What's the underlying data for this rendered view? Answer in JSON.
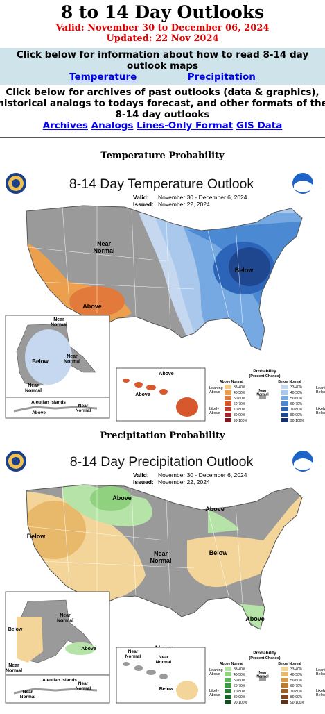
{
  "header": {
    "title": "8 to 14 Day Outlooks",
    "valid": "Valid: November 30 to December 06, 2024",
    "updated": "Updated: 22 Nov 2024"
  },
  "info": {
    "text": "Click below for information about how to read 8-14 day outlook maps",
    "link_temperature": "Temperature",
    "link_precipitation": "Precipitation"
  },
  "archives": {
    "line1": "Click below for archives of past outlooks (data & graphics),",
    "line2": "historical analogs to todays forecast, and other formats of the",
    "line3": "8-14 day outlooks",
    "links": [
      "Archives",
      "Analogs",
      "Lines-Only Format",
      "GIS Data"
    ]
  },
  "temperature": {
    "section_title": "Temperature Probability",
    "map_title": "8-14 Day Temperature Outlook",
    "valid_label": "Valid:",
    "valid_value": "November 30 - December 6, 2024",
    "issued_label": "Issued:",
    "issued_value": "November 22, 2024",
    "labels": {
      "near_normal": "Near\nNormal",
      "above": "Above",
      "below": "Below",
      "ak_near_normal_1": "Near\nNormal",
      "ak_below": "Below",
      "ak_near_normal_2": "Near\nNormal",
      "ak_near_normal_3": "Near\nNormal",
      "aleutian": "Aleutian Islands",
      "al_above": "Above",
      "al_near_normal": "Near\nNormal",
      "hi_above_1": "Above",
      "hi_above_2": "Above"
    },
    "legend": {
      "title": "Probability",
      "subtitle": "(Percent Chance)",
      "above_header": "Above Normal",
      "below_header": "Below Normal",
      "near_normal": "Near\nNormal",
      "leaning_above": "Leaning\nAbove",
      "likely_above": "Likely\nAbove",
      "leaning_below": "Leaning\nBelow",
      "likely_below": "Likely\nBelow",
      "ranges": [
        "33-40%",
        "40-50%",
        "50-60%",
        "60-70%",
        "70-80%",
        "80-90%",
        "90-100%"
      ],
      "above_colors": [
        "#f5c98c",
        "#eca04e",
        "#e27a3b",
        "#d6582c",
        "#c0392b",
        "#a1262a",
        "#7a1c22"
      ],
      "below_colors": [
        "#c6d8ef",
        "#a9c8ec",
        "#76a8e2",
        "#4b89d2",
        "#2c64b7",
        "#1f4790",
        "#172f6b"
      ]
    }
  },
  "precipitation": {
    "section_title": "Precipitation Probability",
    "map_title": "8-14 Day Precipitation Outlook",
    "valid_label": "Valid:",
    "valid_value": "November 30 - December 6, 2024",
    "issued_label": "Issued:",
    "issued_value": "November 22, 2024",
    "labels": {
      "above_n": "Above",
      "above_ne": "Above",
      "below_w": "Below",
      "near_normal": "Near\nNormal",
      "below_e": "Below",
      "above_se": "Above",
      "above_fl": "Above",
      "ak_below": "Below",
      "ak_near_normal": "Near\nNormal",
      "ak_above": "Above",
      "ak_near_normal_2": "Near\nNormal",
      "aleutian": "Aleutian Islands",
      "al_near_normal_1": "Near\nNormal",
      "al_near_normal_2": "Near\nNormal",
      "hi_near_normal_1": "Near\nNormal",
      "hi_near_normal_2": "Near\nNormal",
      "hi_below": "Below"
    },
    "legend": {
      "title": "Probability",
      "subtitle": "(Percent Chance)",
      "above_header": "Above Normal",
      "below_header": "Below Normal",
      "near_normal": "Near\nNormal",
      "leaning_above": "Leaning\nAbove",
      "likely_above": "Likely\nAbove",
      "leaning_below": "Leaning\nBelow",
      "likely_below": "Likely\nBelow",
      "ranges": [
        "33-40%",
        "40-50%",
        "50-60%",
        "60-70%",
        "70-80%",
        "80-90%",
        "90-100%"
      ],
      "above_colors": [
        "#b6e3a8",
        "#8fd17f",
        "#5fb85a",
        "#3c9a43",
        "#2a7e34",
        "#1e6329",
        "#144c1f"
      ],
      "below_colors": [
        "#f3d59a",
        "#e8b86b",
        "#d89a45",
        "#c07a32",
        "#9f5d28",
        "#7e4520",
        "#5e311a"
      ]
    }
  }
}
